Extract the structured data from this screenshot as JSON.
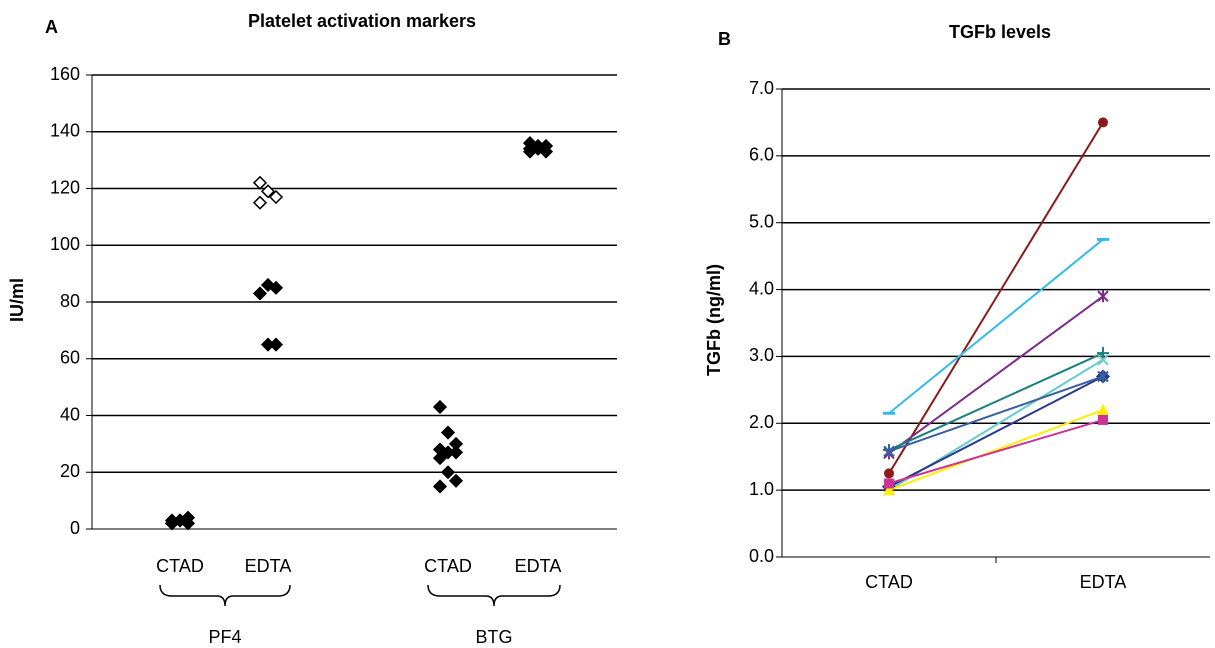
{
  "chart_data": [
    {
      "type": "dot",
      "label": "A",
      "title": "Platelet activation markers",
      "ylabel": "IU/ml",
      "ylim": [
        0,
        160
      ],
      "yticks": [
        0,
        20,
        40,
        60,
        80,
        100,
        120,
        140,
        160
      ],
      "grid": true,
      "color": "#000000",
      "groups": [
        {
          "name": "PF4",
          "categories": [
            "CTAD",
            "EDTA"
          ],
          "values": [
            [
              2,
              3,
              4,
              2,
              3,
              2,
              3
            ],
            [
              122,
              119,
              117,
              115,
              86,
              85,
              83,
              65,
              65
            ]
          ],
          "open": [
            [
              false,
              false,
              false,
              false,
              false,
              false,
              false
            ],
            [
              true,
              true,
              true,
              true,
              false,
              false,
              false,
              false,
              false
            ]
          ]
        },
        {
          "name": "BTG",
          "categories": [
            "CTAD",
            "EDTA"
          ],
          "values": [
            [
              43,
              34,
              30,
              28,
              27,
              27,
              25,
              20,
              17,
              15
            ],
            [
              136,
              135,
              135,
              134,
              134,
              133,
              133
            ]
          ],
          "open": [
            [
              false,
              false,
              false,
              false,
              false,
              false,
              false,
              false,
              false,
              false
            ],
            [
              false,
              false,
              false,
              false,
              false,
              false,
              false
            ]
          ]
        }
      ]
    },
    {
      "type": "line",
      "label": "B",
      "title": "TGFb levels",
      "ylabel": "TGFb (ng/ml)",
      "categories": [
        "CTAD",
        "EDTA"
      ],
      "ylim": [
        0,
        7
      ],
      "yticks": [
        {
          "value": 0,
          "label": "0.0"
        },
        {
          "value": 1,
          "label": "1.0"
        },
        {
          "value": 2,
          "label": "2.0"
        },
        {
          "value": 3,
          "label": "3.0"
        },
        {
          "value": 4,
          "label": "4.0"
        },
        {
          "value": 5,
          "label": "5.0"
        },
        {
          "value": 6,
          "label": "6.0"
        },
        {
          "value": 7,
          "label": "7.0"
        }
      ],
      "grid": true,
      "series": [
        {
          "color": "#8b1a1a",
          "marker": "circle",
          "values": [
            1.25,
            6.5
          ]
        },
        {
          "color": "#33bbee",
          "marker": "dash",
          "values": [
            2.15,
            4.75
          ]
        },
        {
          "color": "#7b2c8b",
          "marker": "star",
          "values": [
            1.55,
            3.9
          ]
        },
        {
          "color": "#1a7f7f",
          "marker": "plus",
          "values": [
            1.6,
            3.05
          ]
        },
        {
          "color": "#66cccc",
          "marker": "x",
          "values": [
            1.0,
            2.95
          ]
        },
        {
          "color": "#2b3a8f",
          "marker": "diamond",
          "values": [
            1.05,
            2.7
          ]
        },
        {
          "color": "#3a5fa0",
          "marker": "star",
          "values": [
            1.58,
            2.7
          ]
        },
        {
          "color": "#ffee00",
          "marker": "triangle",
          "values": [
            1.0,
            2.2
          ]
        },
        {
          "color": "#cc3399",
          "marker": "square",
          "values": [
            1.1,
            2.05
          ]
        }
      ]
    }
  ]
}
